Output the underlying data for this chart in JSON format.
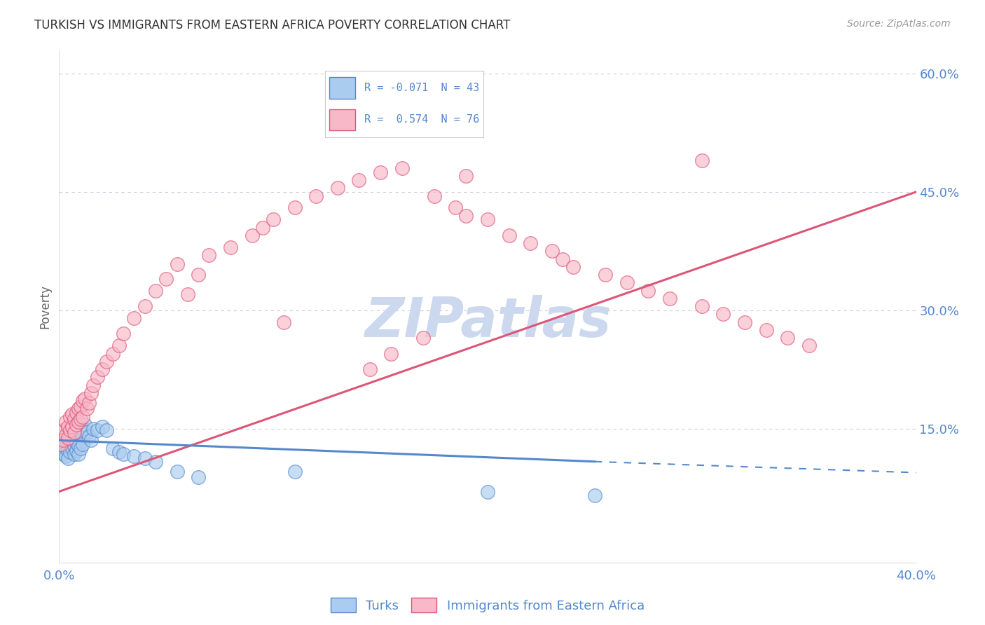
{
  "title": "TURKISH VS IMMIGRANTS FROM EASTERN AFRICA POVERTY CORRELATION CHART",
  "source": "Source: ZipAtlas.com",
  "ylabel": "Poverty",
  "xlim": [
    0.0,
    0.4
  ],
  "ylim": [
    -0.02,
    0.63
  ],
  "yticks_right": [
    0.15,
    0.3,
    0.45,
    0.6
  ],
  "ytick_labels_right": [
    "15.0%",
    "30.0%",
    "45.0%",
    "60.0%"
  ],
  "turks_color": "#aaccee",
  "immigrants_color": "#f8b8c8",
  "trend_turks_color": "#5588cc",
  "trend_immigrants_color": "#dd5577",
  "watermark": "ZIPatlas",
  "watermark_color": "#ccd8ee",
  "background_color": "#ffffff",
  "grid_color": "#ccccdd",
  "title_fontsize": 12,
  "tick_label_color": "#5588cc",
  "turks_x": [
    0.001,
    0.001,
    0.002,
    0.002,
    0.003,
    0.003,
    0.003,
    0.004,
    0.004,
    0.005,
    0.005,
    0.005,
    0.006,
    0.006,
    0.007,
    0.007,
    0.008,
    0.008,
    0.009,
    0.009,
    0.01,
    0.01,
    0.011,
    0.011,
    0.012,
    0.013,
    0.014,
    0.015,
    0.016,
    0.018,
    0.02,
    0.022,
    0.025,
    0.028,
    0.03,
    0.035,
    0.04,
    0.045,
    0.055,
    0.065,
    0.11,
    0.2,
    0.25
  ],
  "turks_y": [
    0.13,
    0.12,
    0.128,
    0.118,
    0.135,
    0.125,
    0.115,
    0.122,
    0.112,
    0.14,
    0.13,
    0.12,
    0.135,
    0.125,
    0.128,
    0.118,
    0.132,
    0.122,
    0.128,
    0.118,
    0.145,
    0.125,
    0.15,
    0.13,
    0.155,
    0.145,
    0.14,
    0.135,
    0.15,
    0.148,
    0.152,
    0.148,
    0.125,
    0.12,
    0.118,
    0.115,
    0.112,
    0.108,
    0.095,
    0.088,
    0.095,
    0.07,
    0.065
  ],
  "imm_x": [
    0.001,
    0.001,
    0.002,
    0.002,
    0.003,
    0.003,
    0.004,
    0.004,
    0.005,
    0.005,
    0.006,
    0.006,
    0.007,
    0.007,
    0.008,
    0.008,
    0.009,
    0.009,
    0.01,
    0.01,
    0.011,
    0.011,
    0.012,
    0.013,
    0.014,
    0.015,
    0.016,
    0.018,
    0.02,
    0.022,
    0.025,
    0.028,
    0.03,
    0.035,
    0.04,
    0.045,
    0.05,
    0.055,
    0.06,
    0.065,
    0.07,
    0.08,
    0.09,
    0.095,
    0.1,
    0.11,
    0.12,
    0.13,
    0.14,
    0.15,
    0.16,
    0.175,
    0.185,
    0.19,
    0.2,
    0.21,
    0.22,
    0.23,
    0.235,
    0.24,
    0.255,
    0.265,
    0.275,
    0.285,
    0.3,
    0.31,
    0.32,
    0.33,
    0.34,
    0.35,
    0.3,
    0.19,
    0.17,
    0.155,
    0.145,
    0.105
  ],
  "imm_y": [
    0.145,
    0.13,
    0.148,
    0.135,
    0.158,
    0.142,
    0.152,
    0.138,
    0.165,
    0.148,
    0.168,
    0.152,
    0.162,
    0.145,
    0.17,
    0.155,
    0.175,
    0.158,
    0.178,
    0.162,
    0.185,
    0.165,
    0.188,
    0.175,
    0.182,
    0.195,
    0.205,
    0.215,
    0.225,
    0.235,
    0.245,
    0.255,
    0.27,
    0.29,
    0.305,
    0.325,
    0.34,
    0.358,
    0.32,
    0.345,
    0.37,
    0.38,
    0.395,
    0.405,
    0.415,
    0.43,
    0.445,
    0.455,
    0.465,
    0.475,
    0.48,
    0.445,
    0.43,
    0.42,
    0.415,
    0.395,
    0.385,
    0.375,
    0.365,
    0.355,
    0.345,
    0.335,
    0.325,
    0.315,
    0.305,
    0.295,
    0.285,
    0.275,
    0.265,
    0.255,
    0.49,
    0.47,
    0.265,
    0.245,
    0.225,
    0.285
  ],
  "trend_imm_x0": 0.0,
  "trend_imm_y0": 0.07,
  "trend_imm_x1": 0.4,
  "trend_imm_y1": 0.45,
  "trend_turks_x0": 0.0,
  "trend_turks_y0": 0.135,
  "trend_turks_x1": 0.25,
  "trend_turks_y1": 0.108,
  "trend_turks_dash_x0": 0.25,
  "trend_turks_dash_y0": 0.108,
  "trend_turks_dash_x1": 0.4,
  "trend_turks_dash_y1": 0.094
}
